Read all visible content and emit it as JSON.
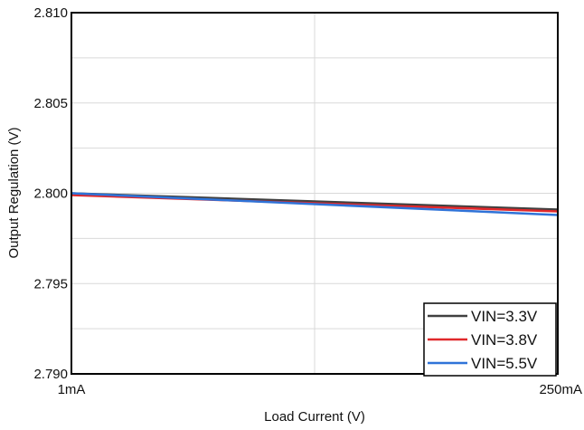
{
  "chart_data": {
    "type": "line",
    "title": "",
    "xlabel": "Load Current (V)",
    "ylabel": "Output Regulation (V)",
    "x_tick_labels": [
      "1mA",
      "250mA"
    ],
    "x": [
      1,
      250
    ],
    "x_scale": "log",
    "y_tick_labels": [
      "2.810",
      "2.805",
      "2.800",
      "2.795",
      "2.790"
    ],
    "ylim": [
      2.79,
      2.81
    ],
    "grid": true,
    "legend_position": "bottom-right",
    "series": [
      {
        "name": "VIN=3.3V",
        "color": "#404040",
        "values": [
          2.8,
          2.7991
        ]
      },
      {
        "name": "VIN=3.8V",
        "color": "#e0282b",
        "values": [
          2.7999,
          2.799
        ]
      },
      {
        "name": "VIN=5.5V",
        "color": "#2f73d8",
        "values": [
          2.8,
          2.7988
        ]
      }
    ]
  }
}
